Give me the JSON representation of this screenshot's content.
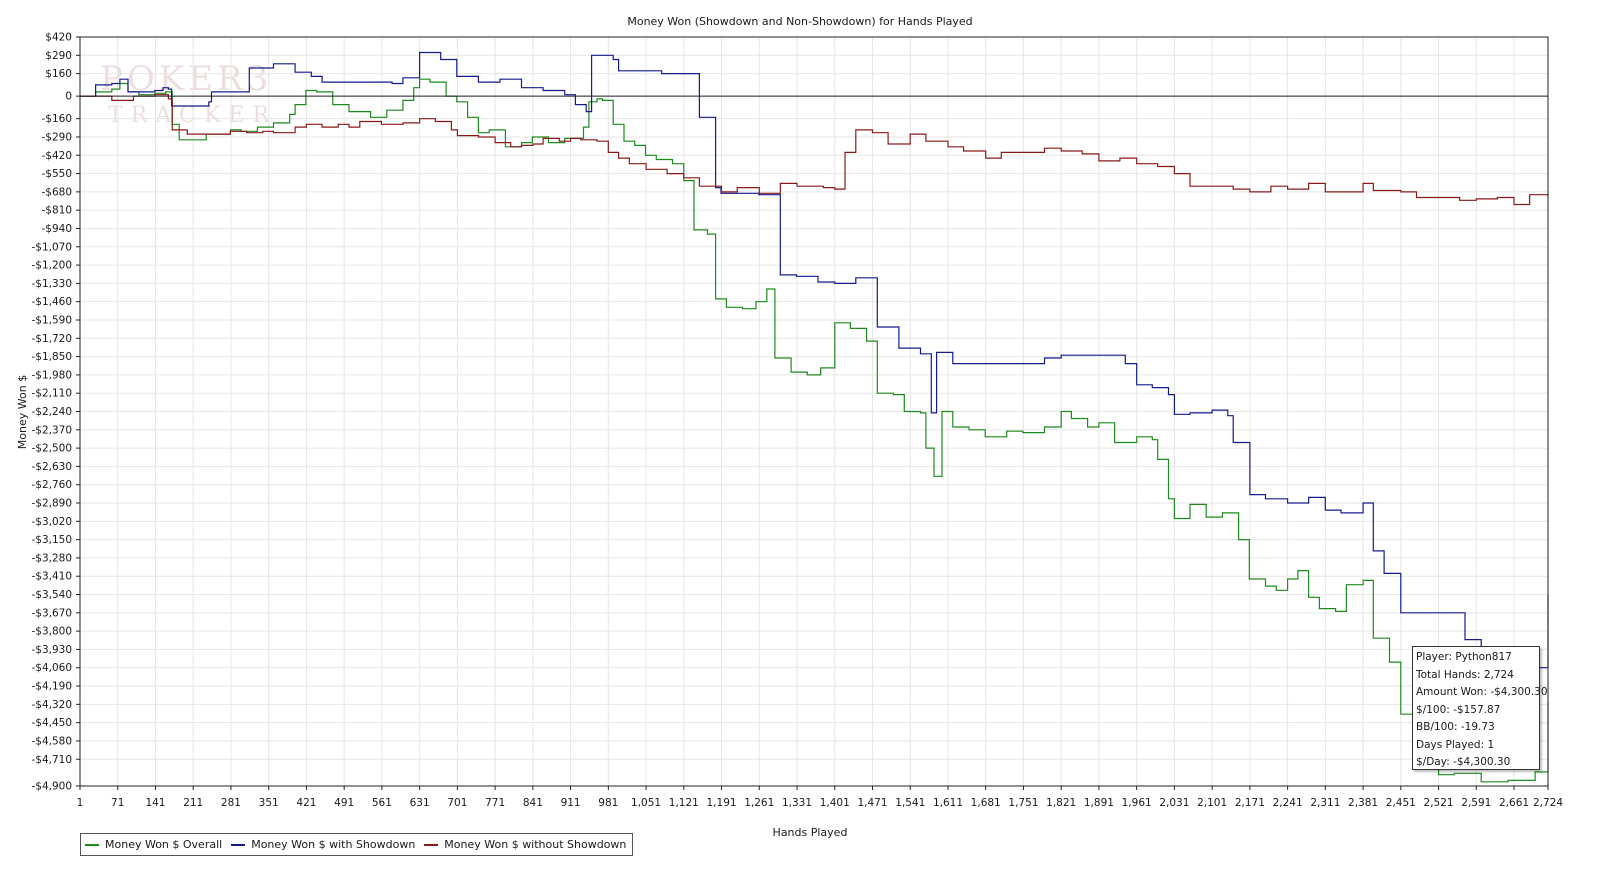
{
  "chart_data": {
    "type": "line",
    "title": "Money Won (Showdown and Non-Showdown) for Hands Played",
    "xlabel": "Hands Played",
    "ylabel": "Money Won $",
    "xlim": [
      1,
      2724
    ],
    "ylim": [
      -4900,
      420
    ],
    "y_ticks": [
      420,
      290,
      160,
      0,
      -160,
      -290,
      -420,
      -550,
      -680,
      -810,
      -940,
      -1070,
      -1200,
      -1330,
      -1460,
      -1590,
      -1720,
      -1850,
      -1980,
      -2110,
      -2240,
      -2370,
      -2500,
      -2630,
      -2760,
      -2890,
      -3020,
      -3150,
      -3280,
      -3410,
      -3540,
      -3670,
      -3800,
      -3930,
      -4060,
      -4190,
      -4320,
      -4450,
      -4580,
      -4710,
      -4900
    ],
    "y_tick_labels": [
      "$420",
      "$290",
      "$160",
      "0",
      "-$160",
      "-$290",
      "-$420",
      "-$550",
      "-$680",
      "-$810",
      "-$940",
      "-$1,070",
      "-$1,200",
      "-$1,330",
      "-$1,460",
      "-$1,590",
      "-$1,720",
      "-$1,850",
      "-$1,980",
      "-$2,110",
      "-$2,240",
      "-$2,370",
      "-$2,500",
      "-$2,630",
      "-$2,760",
      "-$2,890",
      "-$3,020",
      "-$3,150",
      "-$3,280",
      "-$3,410",
      "-$3,540",
      "-$3,670",
      "-$3,800",
      "-$3,930",
      "-$4,060",
      "-$4,190",
      "-$4,320",
      "-$4,450",
      "-$4,580",
      "-$4,710",
      "-$4,900"
    ],
    "x_ticks": [
      1,
      71,
      141,
      211,
      281,
      351,
      421,
      491,
      561,
      631,
      701,
      771,
      841,
      911,
      981,
      1051,
      1121,
      1191,
      1261,
      1331,
      1401,
      1471,
      1541,
      1611,
      1681,
      1751,
      1821,
      1891,
      1961,
      2031,
      2101,
      2171,
      2241,
      2311,
      2381,
      2451,
      2521,
      2591,
      2661,
      2724
    ],
    "x_tick_labels": [
      "1",
      "71",
      "141",
      "211",
      "281",
      "351",
      "421",
      "491",
      "561",
      "631",
      "701",
      "771",
      "841",
      "911",
      "981",
      "1,051",
      "1,121",
      "1,191",
      "1,261",
      "1,331",
      "1,401",
      "1,471",
      "1,541",
      "1,611",
      "1,681",
      "1,751",
      "1,821",
      "1,891",
      "1,961",
      "2,031",
      "2,101",
      "2,171",
      "2,241",
      "2,311",
      "2,381",
      "2,451",
      "2,521",
      "2,591",
      "2,661",
      "2,724"
    ],
    "grid": true,
    "legend_position": "bottom-left",
    "series": [
      {
        "name": "Money Won $ Overall",
        "color": "#1f8a1f",
        "points": [
          [
            1,
            0
          ],
          [
            30,
            30
          ],
          [
            60,
            50
          ],
          [
            75,
            90
          ],
          [
            90,
            30
          ],
          [
            110,
            10
          ],
          [
            140,
            20
          ],
          [
            160,
            30
          ],
          [
            172,
            -200
          ],
          [
            185,
            -310
          ],
          [
            210,
            -310
          ],
          [
            235,
            -270
          ],
          [
            280,
            -240
          ],
          [
            300,
            -250
          ],
          [
            330,
            -220
          ],
          [
            360,
            -190
          ],
          [
            390,
            -130
          ],
          [
            400,
            -60
          ],
          [
            420,
            40
          ],
          [
            440,
            30
          ],
          [
            470,
            -60
          ],
          [
            500,
            -110
          ],
          [
            540,
            -150
          ],
          [
            570,
            -100
          ],
          [
            600,
            -30
          ],
          [
            620,
            60
          ],
          [
            631,
            120
          ],
          [
            650,
            100
          ],
          [
            680,
            0
          ],
          [
            700,
            -40
          ],
          [
            720,
            -150
          ],
          [
            740,
            -260
          ],
          [
            760,
            -240
          ],
          [
            790,
            -360
          ],
          [
            820,
            -330
          ],
          [
            840,
            -290
          ],
          [
            870,
            -330
          ],
          [
            900,
            -300
          ],
          [
            935,
            -220
          ],
          [
            945,
            -40
          ],
          [
            960,
            -20
          ],
          [
            970,
            -30
          ],
          [
            990,
            -200
          ],
          [
            1010,
            -320
          ],
          [
            1030,
            -350
          ],
          [
            1050,
            -420
          ],
          [
            1070,
            -450
          ],
          [
            1100,
            -480
          ],
          [
            1121,
            -600
          ],
          [
            1140,
            -950
          ],
          [
            1165,
            -980
          ],
          [
            1180,
            -1440
          ],
          [
            1200,
            -1500
          ],
          [
            1230,
            -1510
          ],
          [
            1255,
            -1460
          ],
          [
            1275,
            -1370
          ],
          [
            1290,
            -1860
          ],
          [
            1320,
            -1960
          ],
          [
            1350,
            -1980
          ],
          [
            1375,
            -1930
          ],
          [
            1401,
            -1610
          ],
          [
            1430,
            -1650
          ],
          [
            1460,
            -1740
          ],
          [
            1480,
            -2110
          ],
          [
            1510,
            -2120
          ],
          [
            1530,
            -2240
          ],
          [
            1545,
            -2240
          ],
          [
            1560,
            -2250
          ],
          [
            1570,
            -2500
          ],
          [
            1585,
            -2700
          ],
          [
            1600,
            -2240
          ],
          [
            1620,
            -2350
          ],
          [
            1650,
            -2370
          ],
          [
            1680,
            -2420
          ],
          [
            1700,
            -2420
          ],
          [
            1720,
            -2380
          ],
          [
            1750,
            -2390
          ],
          [
            1790,
            -2350
          ],
          [
            1821,
            -2240
          ],
          [
            1840,
            -2290
          ],
          [
            1870,
            -2350
          ],
          [
            1891,
            -2320
          ],
          [
            1920,
            -2460
          ],
          [
            1961,
            -2420
          ],
          [
            1990,
            -2440
          ],
          [
            2000,
            -2580
          ],
          [
            2020,
            -2860
          ],
          [
            2031,
            -3000
          ],
          [
            2060,
            -2900
          ],
          [
            2090,
            -2990
          ],
          [
            2120,
            -2960
          ],
          [
            2150,
            -3150
          ],
          [
            2170,
            -3430
          ],
          [
            2200,
            -3480
          ],
          [
            2220,
            -3510
          ],
          [
            2241,
            -3430
          ],
          [
            2260,
            -3370
          ],
          [
            2280,
            -3560
          ],
          [
            2300,
            -3640
          ],
          [
            2330,
            -3660
          ],
          [
            2350,
            -3470
          ],
          [
            2381,
            -3440
          ],
          [
            2400,
            -3850
          ],
          [
            2430,
            -4020
          ],
          [
            2451,
            -4390
          ],
          [
            2480,
            -4400
          ],
          [
            2500,
            -4420
          ],
          [
            2521,
            -4820
          ],
          [
            2550,
            -4810
          ],
          [
            2600,
            -4870
          ],
          [
            2650,
            -4860
          ],
          [
            2700,
            -4800
          ],
          [
            2724,
            -4300
          ]
        ]
      },
      {
        "name": "Money Won $ with Showdown",
        "color": "#141c8c",
        "points": [
          [
            1,
            0
          ],
          [
            25,
            0
          ],
          [
            30,
            80
          ],
          [
            60,
            90
          ],
          [
            75,
            120
          ],
          [
            90,
            30
          ],
          [
            140,
            40
          ],
          [
            155,
            60
          ],
          [
            165,
            50
          ],
          [
            171,
            -70
          ],
          [
            240,
            -40
          ],
          [
            245,
            30
          ],
          [
            315,
            200
          ],
          [
            360,
            230
          ],
          [
            400,
            170
          ],
          [
            430,
            140
          ],
          [
            450,
            100
          ],
          [
            580,
            90
          ],
          [
            600,
            130
          ],
          [
            631,
            310
          ],
          [
            670,
            260
          ],
          [
            700,
            140
          ],
          [
            740,
            100
          ],
          [
            780,
            120
          ],
          [
            820,
            60
          ],
          [
            860,
            40
          ],
          [
            900,
            10
          ],
          [
            920,
            -60
          ],
          [
            940,
            -110
          ],
          [
            950,
            290
          ],
          [
            990,
            260
          ],
          [
            1000,
            180
          ],
          [
            1080,
            160
          ],
          [
            1150,
            -150
          ],
          [
            1180,
            -650
          ],
          [
            1190,
            -690
          ],
          [
            1260,
            -700
          ],
          [
            1300,
            -1270
          ],
          [
            1330,
            -1280
          ],
          [
            1370,
            -1320
          ],
          [
            1401,
            -1330
          ],
          [
            1440,
            -1290
          ],
          [
            1480,
            -1640
          ],
          [
            1520,
            -1790
          ],
          [
            1560,
            -1830
          ],
          [
            1580,
            -2250
          ],
          [
            1590,
            -1820
          ],
          [
            1620,
            -1900
          ],
          [
            1700,
            -1900
          ],
          [
            1790,
            -1860
          ],
          [
            1821,
            -1840
          ],
          [
            1890,
            -1840
          ],
          [
            1940,
            -1900
          ],
          [
            1961,
            -2050
          ],
          [
            1990,
            -2070
          ],
          [
            2020,
            -2120
          ],
          [
            2031,
            -2260
          ],
          [
            2060,
            -2250
          ],
          [
            2101,
            -2230
          ],
          [
            2130,
            -2270
          ],
          [
            2140,
            -2460
          ],
          [
            2171,
            -2830
          ],
          [
            2200,
            -2860
          ],
          [
            2241,
            -2890
          ],
          [
            2280,
            -2850
          ],
          [
            2311,
            -2940
          ],
          [
            2340,
            -2960
          ],
          [
            2381,
            -2890
          ],
          [
            2400,
            -3230
          ],
          [
            2420,
            -3390
          ],
          [
            2451,
            -3670
          ],
          [
            2500,
            -3670
          ],
          [
            2540,
            -3670
          ],
          [
            2570,
            -3860
          ],
          [
            2600,
            -4000
          ],
          [
            2650,
            -4030
          ],
          [
            2700,
            -4060
          ],
          [
            2724,
            -3540
          ]
        ]
      },
      {
        "name": "Money Won $ without Showdown",
        "color": "#8a1a1a",
        "points": [
          [
            1,
            0
          ],
          [
            60,
            -30
          ],
          [
            100,
            0
          ],
          [
            140,
            10
          ],
          [
            165,
            -20
          ],
          [
            172,
            -240
          ],
          [
            200,
            -270
          ],
          [
            240,
            -270
          ],
          [
            280,
            -250
          ],
          [
            310,
            -260
          ],
          [
            340,
            -250
          ],
          [
            360,
            -260
          ],
          [
            400,
            -220
          ],
          [
            421,
            -200
          ],
          [
            450,
            -220
          ],
          [
            480,
            -200
          ],
          [
            500,
            -220
          ],
          [
            520,
            -180
          ],
          [
            560,
            -200
          ],
          [
            600,
            -190
          ],
          [
            631,
            -160
          ],
          [
            660,
            -180
          ],
          [
            690,
            -240
          ],
          [
            701,
            -280
          ],
          [
            740,
            -290
          ],
          [
            771,
            -330
          ],
          [
            800,
            -360
          ],
          [
            820,
            -350
          ],
          [
            841,
            -340
          ],
          [
            860,
            -300
          ],
          [
            890,
            -320
          ],
          [
            911,
            -300
          ],
          [
            930,
            -310
          ],
          [
            960,
            -320
          ],
          [
            981,
            -400
          ],
          [
            1000,
            -440
          ],
          [
            1020,
            -480
          ],
          [
            1051,
            -520
          ],
          [
            1090,
            -550
          ],
          [
            1121,
            -580
          ],
          [
            1150,
            -640
          ],
          [
            1191,
            -680
          ],
          [
            1220,
            -650
          ],
          [
            1261,
            -690
          ],
          [
            1300,
            -620
          ],
          [
            1331,
            -640
          ],
          [
            1380,
            -650
          ],
          [
            1401,
            -660
          ],
          [
            1420,
            -400
          ],
          [
            1440,
            -240
          ],
          [
            1471,
            -260
          ],
          [
            1500,
            -340
          ],
          [
            1541,
            -270
          ],
          [
            1570,
            -320
          ],
          [
            1611,
            -360
          ],
          [
            1640,
            -390
          ],
          [
            1681,
            -440
          ],
          [
            1710,
            -400
          ],
          [
            1751,
            -400
          ],
          [
            1790,
            -370
          ],
          [
            1821,
            -390
          ],
          [
            1860,
            -410
          ],
          [
            1891,
            -460
          ],
          [
            1930,
            -440
          ],
          [
            1961,
            -480
          ],
          [
            2000,
            -500
          ],
          [
            2031,
            -550
          ],
          [
            2060,
            -640
          ],
          [
            2101,
            -640
          ],
          [
            2140,
            -660
          ],
          [
            2171,
            -680
          ],
          [
            2210,
            -640
          ],
          [
            2241,
            -660
          ],
          [
            2280,
            -620
          ],
          [
            2311,
            -680
          ],
          [
            2340,
            -680
          ],
          [
            2381,
            -620
          ],
          [
            2400,
            -670
          ],
          [
            2451,
            -680
          ],
          [
            2480,
            -720
          ],
          [
            2521,
            -720
          ],
          [
            2560,
            -740
          ],
          [
            2591,
            -730
          ],
          [
            2630,
            -720
          ],
          [
            2661,
            -770
          ],
          [
            2690,
            -700
          ],
          [
            2724,
            -720
          ]
        ]
      }
    ]
  },
  "watermark": {
    "line1": "POKER3",
    "line2": "TRACKER"
  },
  "tooltip": {
    "player": "Player: Python817",
    "total_hands": "Total Hands: 2,724",
    "amount_won": "Amount Won: -$4,300.30",
    "per_100": "$/100: -$157.87",
    "bb_per_100": "BB/100: -19.73",
    "days_played": "Days Played: 1",
    "per_day": "$/Day: -$4,300.30"
  }
}
